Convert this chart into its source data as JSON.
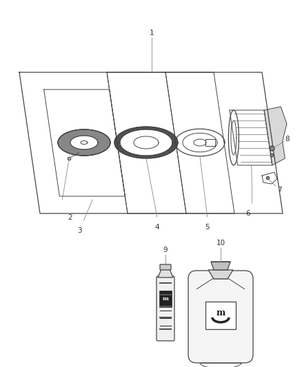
{
  "background_color": "#ffffff",
  "line_color": "#444444",
  "label_color": "#333333",
  "fig_width": 4.38,
  "fig_height": 5.33,
  "dpi": 100
}
